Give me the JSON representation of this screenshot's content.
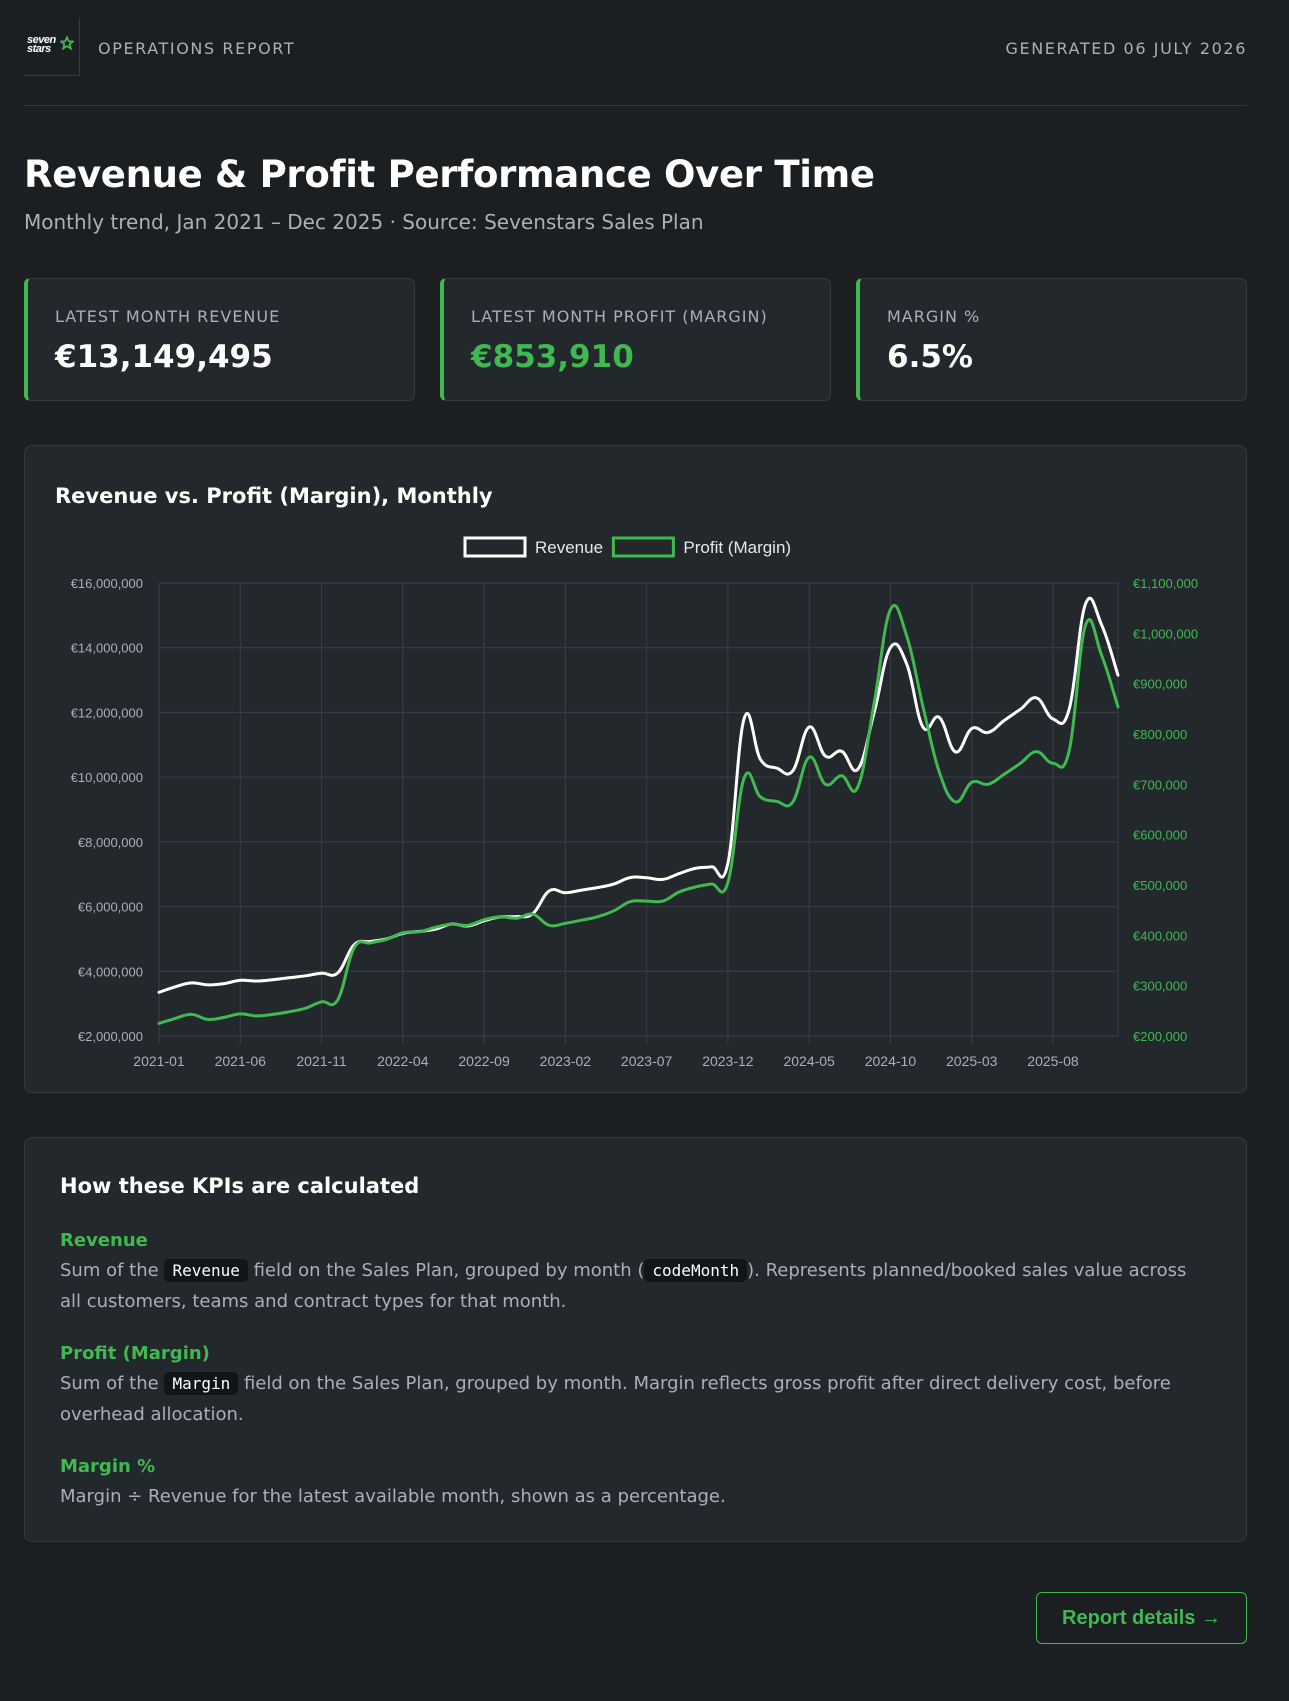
{
  "header": {
    "logo_line1": "seven",
    "logo_line2": "stars",
    "report_label": "OPERATIONS REPORT",
    "generated": "GENERATED 06 JULY 2026"
  },
  "title": "Revenue & Profit Performance Over Time",
  "subtitle": "Monthly trend, Jan 2021 – Dec 2025 · Source: Sevenstars Sales Plan",
  "kpis": [
    {
      "label": "LATEST MONTH REVENUE",
      "value": "€13,149,495"
    },
    {
      "label": "LATEST MONTH PROFIT (MARGIN)",
      "value": "€853,910"
    },
    {
      "label": "MARGIN %",
      "value": "6.5%"
    }
  ],
  "chart_title": "Revenue vs. Profit (Margin), Monthly",
  "chart_data": {
    "type": "line",
    "title": "Revenue vs. Profit (Margin), Monthly",
    "x_tick_labels": [
      "2021-01",
      "2021-06",
      "2021-11",
      "2022-04",
      "2022-09",
      "2023-02",
      "2023-07",
      "2023-12",
      "2024-05",
      "2024-10",
      "2025-03",
      "2025-08"
    ],
    "x": [
      "2021-01",
      "2021-02",
      "2021-03",
      "2021-04",
      "2021-05",
      "2021-06",
      "2021-07",
      "2021-08",
      "2021-09",
      "2021-10",
      "2021-11",
      "2021-12",
      "2022-01",
      "2022-02",
      "2022-03",
      "2022-04",
      "2022-05",
      "2022-06",
      "2022-07",
      "2022-08",
      "2022-09",
      "2022-10",
      "2022-11",
      "2022-12",
      "2023-01",
      "2023-02",
      "2023-03",
      "2023-04",
      "2023-05",
      "2023-06",
      "2023-07",
      "2023-08",
      "2023-09",
      "2023-10",
      "2023-11",
      "2023-12",
      "2024-01",
      "2024-02",
      "2024-03",
      "2024-04",
      "2024-05",
      "2024-06",
      "2024-07",
      "2024-08",
      "2024-09",
      "2024-10",
      "2024-11",
      "2024-12",
      "2025-01",
      "2025-02",
      "2025-03",
      "2025-04",
      "2025-05",
      "2025-06",
      "2025-07",
      "2025-08",
      "2025-09",
      "2025-10",
      "2025-11",
      "2025-12"
    ],
    "series": [
      {
        "name": "Revenue",
        "axis": "left",
        "color": "#ffffff",
        "values": [
          3350000,
          3520000,
          3640000,
          3580000,
          3620000,
          3720000,
          3700000,
          3740000,
          3800000,
          3860000,
          3940000,
          3950000,
          4820000,
          4920000,
          5000000,
          5170000,
          5230000,
          5300000,
          5460000,
          5400000,
          5560000,
          5680000,
          5690000,
          5780000,
          6480000,
          6430000,
          6510000,
          6590000,
          6700000,
          6900000,
          6890000,
          6840000,
          7020000,
          7180000,
          7230000,
          7340000,
          11820000,
          10550000,
          10280000,
          10200000,
          11550000,
          10650000,
          10800000,
          10250000,
          12000000,
          14000000,
          13500000,
          11550000,
          11850000,
          10780000,
          11500000,
          11380000,
          11750000,
          12100000,
          12450000,
          11800000,
          12100000,
          15350000,
          14700000,
          13149495
        ]
      },
      {
        "name": "Profit (Margin)",
        "axis": "right",
        "color": "#3fb950",
        "values": [
          225000,
          235000,
          243000,
          233000,
          237000,
          244000,
          240000,
          243000,
          248000,
          255000,
          268000,
          272000,
          375000,
          385000,
          392000,
          405000,
          407000,
          416000,
          422000,
          420000,
          431000,
          437000,
          434000,
          442000,
          420000,
          424000,
          430000,
          437000,
          449000,
          467000,
          468000,
          468000,
          486000,
          496000,
          502000,
          505000,
          713000,
          675000,
          666000,
          665000,
          754000,
          700000,
          717000,
          695000,
          862000,
          1047000,
          995000,
          855000,
          725000,
          665000,
          704000,
          700000,
          720000,
          742000,
          765000,
          742000,
          767000,
          1016000,
          956000,
          853910
        ]
      }
    ],
    "y_left": {
      "min": 2000000,
      "max": 16000000,
      "step": 2000000,
      "tick_labels": [
        "€2,000,000",
        "€4,000,000",
        "€6,000,000",
        "€8,000,000",
        "€10,000,000",
        "€12,000,000",
        "€14,000,000",
        "€16,000,000"
      ]
    },
    "y_right": {
      "min": 200000,
      "max": 1100000,
      "step": 100000,
      "tick_labels": [
        "€200,000",
        "€300,000",
        "€400,000",
        "€500,000",
        "€600,000",
        "€700,000",
        "€800,000",
        "€900,000",
        "€1,000,000",
        "€1,100,000"
      ]
    },
    "legend": "top-center",
    "grid": true
  },
  "notes": {
    "title": "How these KPIs are calculated",
    "items": [
      {
        "term": "Revenue",
        "pre": "Sum of the ",
        "code1": "Revenue",
        "mid": " field on the Sales Plan, grouped by month (",
        "code2": "codeMonth",
        "post": "). Represents planned/booked sales value across all customers, teams and contract types for that month."
      },
      {
        "term": "Profit (Margin)",
        "pre": "Sum of the ",
        "code1": "Margin",
        "post": " field on the Sales Plan, grouped by month. Margin reflects gross profit after direct delivery cost, before overhead allocation."
      },
      {
        "term": "Margin %",
        "text": "Margin ÷ Revenue for the latest available month, shown as a percentage."
      }
    ]
  },
  "details_button": "Report details →"
}
